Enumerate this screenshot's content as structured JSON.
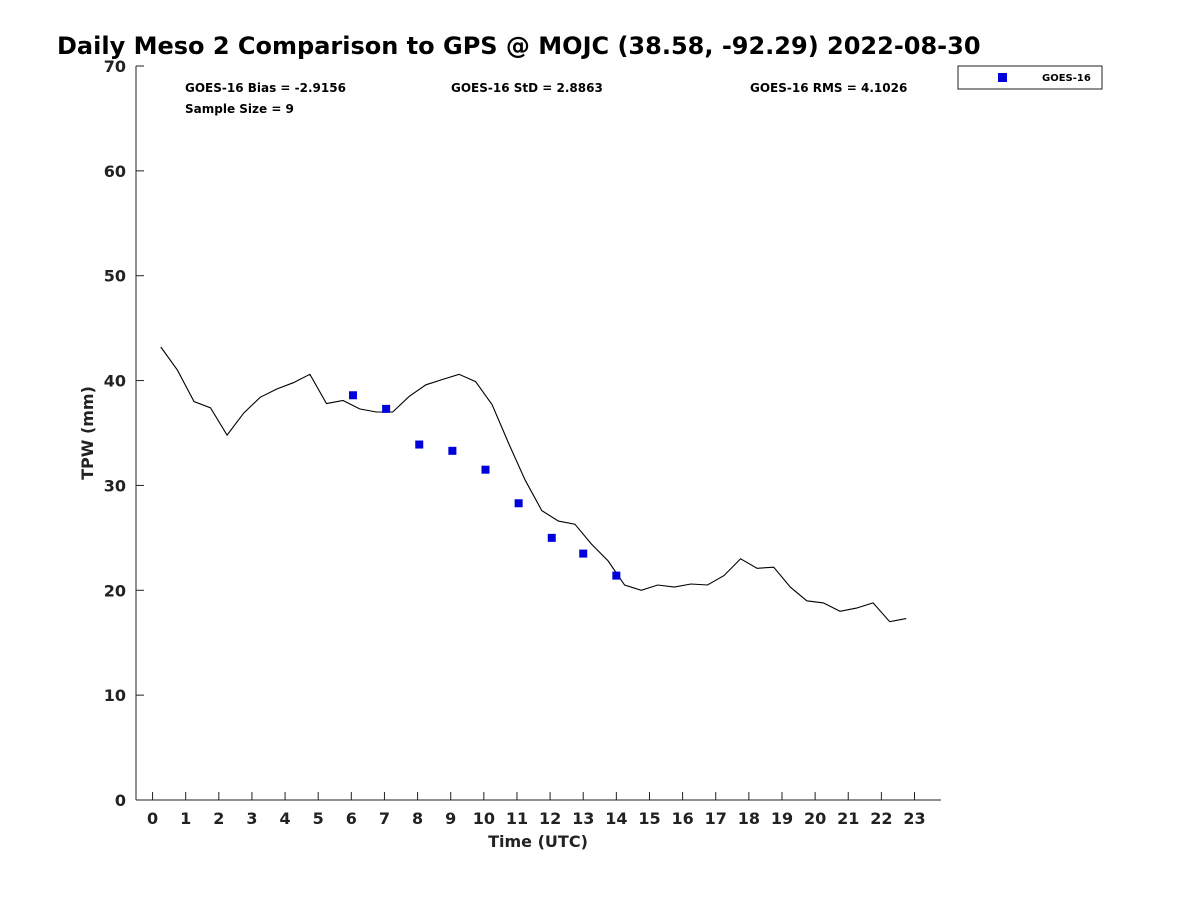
{
  "chart_data": {
    "type": "line",
    "title": "Daily Meso 2 Comparison to GPS @ MOJC (38.58, -92.29) 2022-08-30",
    "xlabel": "Time (UTC)",
    "ylabel": "TPW (mm)",
    "xlim": [
      -0.5,
      23.8
    ],
    "ylim": [
      0,
      70
    ],
    "x_ticks": [
      "0",
      "1",
      "2",
      "3",
      "4",
      "5",
      "6",
      "7",
      "8",
      "9",
      "10",
      "11",
      "12",
      "13",
      "14",
      "15",
      "16",
      "17",
      "18",
      "19",
      "20",
      "21",
      "22",
      "23"
    ],
    "y_ticks": [
      "0",
      "10",
      "20",
      "30",
      "40",
      "50",
      "60",
      "70"
    ],
    "grid": false,
    "legend": {
      "placement": "top-right",
      "entries": [
        "GOES-16"
      ]
    },
    "annotations": {
      "bias": "GOES-16 Bias = -2.9156",
      "std": "GOES-16 StD = 2.8863",
      "rms": "GOES-16 RMS = 4.1026",
      "sample": "Sample Size = 9"
    },
    "series": [
      {
        "kind": "line",
        "color": "#000000",
        "x": [
          0.25,
          0.75,
          1.25,
          1.75,
          2.25,
          2.75,
          3.25,
          3.75,
          4.25,
          4.75,
          5.25,
          5.75,
          6.25,
          6.75,
          7.25,
          7.75,
          8.25,
          8.75,
          9.25,
          9.75,
          10.25,
          10.75,
          11.25,
          11.75,
          12.25,
          12.75,
          13.25,
          13.75,
          14.25,
          14.75,
          15.25,
          15.75,
          16.25,
          16.75,
          17.25,
          17.75,
          18.25,
          18.75,
          19.25,
          19.75,
          20.25,
          20.75,
          21.25,
          21.75,
          22.25,
          22.75
        ],
        "values": [
          43.2,
          41.0,
          38.0,
          37.4,
          34.8,
          36.9,
          38.4,
          39.2,
          39.8,
          40.6,
          37.8,
          38.1,
          37.3,
          37.0,
          37.0,
          38.5,
          39.6,
          40.1,
          40.6,
          39.9,
          37.7,
          34.0,
          30.5,
          27.6,
          26.6,
          26.3,
          24.4,
          22.8,
          20.5,
          20.0,
          20.5,
          20.3,
          20.6,
          20.5,
          21.4,
          23.0,
          22.1,
          22.2,
          20.3,
          19.0,
          18.8,
          18.0,
          18.3,
          18.8,
          17.0,
          17.3
        ]
      },
      {
        "name": "GOES-16",
        "kind": "scatter",
        "color": "#0000dd",
        "x": [
          6.05,
          7.05,
          8.05,
          9.05,
          10.05,
          11.05,
          12.05,
          13.0,
          14.0
        ],
        "values": [
          38.6,
          37.3,
          33.9,
          33.3,
          31.5,
          28.3,
          25.0,
          23.5,
          21.4
        ]
      }
    ]
  }
}
